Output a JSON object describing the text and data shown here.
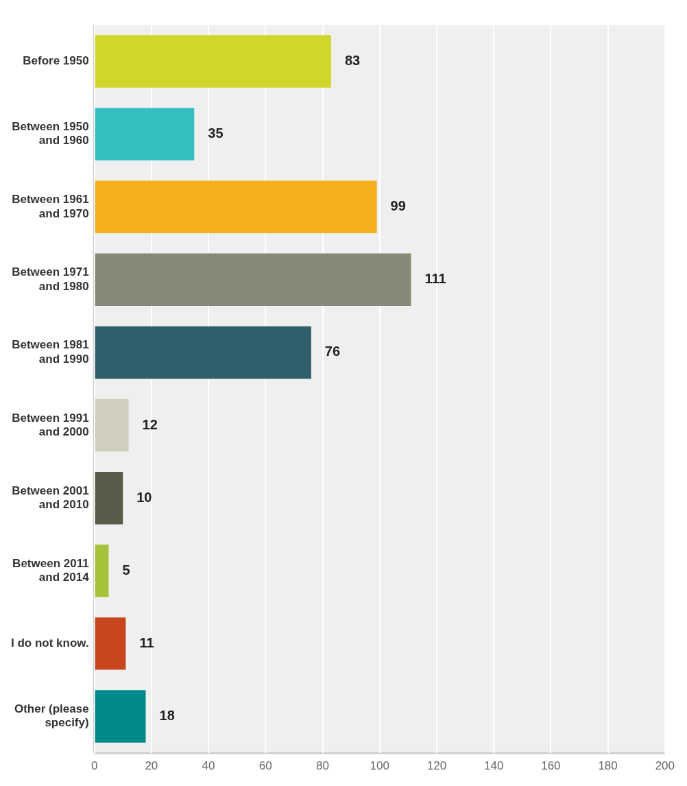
{
  "chart_data": {
    "type": "bar",
    "orientation": "horizontal",
    "categories": [
      "Before 1950",
      "Between 1950 and 1960",
      "Between 1961 and 1970",
      "Between 1971 and 1980",
      "Between 1981 and 1990",
      "Between 1991 and 2000",
      "Between 2001 and 2010",
      "Between 2011 and 2014",
      "I do not know.",
      "Other (please specify)"
    ],
    "values": [
      83,
      35,
      99,
      111,
      76,
      12,
      10,
      5,
      11,
      18
    ],
    "colors": [
      "#d0d62a",
      "#33bfbf",
      "#f5ae1e",
      "#888877",
      "#2e5f6b",
      "#d0cfc0",
      "#5a5a48",
      "#a6c23a",
      "#c8461e",
      "#00898a"
    ],
    "xlim": [
      0,
      200
    ],
    "xticks": [
      0,
      20,
      40,
      60,
      80,
      100,
      120,
      140,
      160,
      180,
      200
    ],
    "grid": "x",
    "data_labels": true,
    "legend": false
  }
}
